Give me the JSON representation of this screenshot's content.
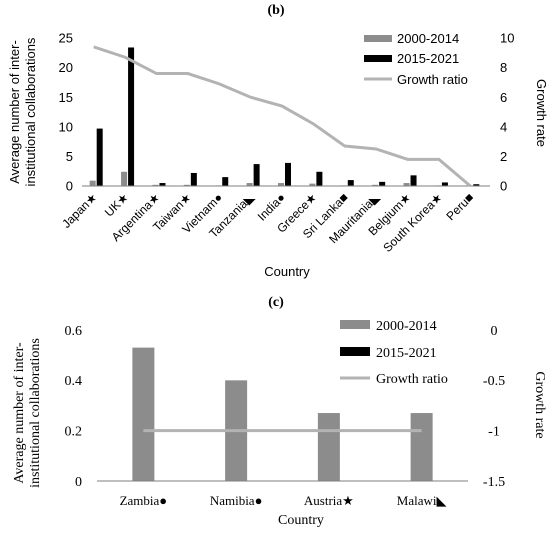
{
  "colors": {
    "bar_early": "#8c8c8c",
    "bar_late": "#000000",
    "line": "#b3b3b3",
    "axis": "#7f7f7f"
  },
  "chart_data": [
    {
      "panel_label": "(b)",
      "type": "bar",
      "secondary_type": "line",
      "categories": [
        "Japan★",
        "UK★",
        "Argentina★",
        "Taiwan★",
        "Vietnam●",
        "Tanzania◣",
        "India●",
        "Greece★",
        "Sri Lanka■",
        "Mauritania◣",
        "Belgium★",
        "South Korea★",
        "Peru■"
      ],
      "series": [
        {
          "name": "2000-2014",
          "axis": "left",
          "values": [
            0.9,
            2.4,
            0.2,
            0.2,
            0.1,
            0.5,
            0.5,
            0.4,
            0.1,
            0.2,
            0.5,
            0.1,
            0.1
          ]
        },
        {
          "name": "2015-2021",
          "axis": "left",
          "values": [
            9.7,
            23.4,
            0.5,
            2.2,
            1.5,
            3.7,
            3.9,
            2.4,
            1.0,
            0.7,
            1.8,
            0.6,
            0.3
          ]
        },
        {
          "name": "Growth ratio",
          "axis": "right",
          "values": [
            9.4,
            8.7,
            7.6,
            7.6,
            6.9,
            6.0,
            5.4,
            4.2,
            2.7,
            2.5,
            1.8,
            1.8,
            0.0
          ]
        }
      ],
      "xlabel": "Country",
      "ylabel": "Average number of inter-institutional collaborations",
      "ylabel_right": "Growth rate",
      "ylim": [
        0,
        25
      ],
      "yticks": [
        "0",
        "5",
        "10",
        "15",
        "20",
        "25"
      ],
      "ylim_right": [
        0,
        10
      ],
      "yticks_right": [
        "0",
        "2",
        "4",
        "6",
        "8",
        "10"
      ],
      "legend_position": "top-right",
      "grid": false
    },
    {
      "panel_label": "(c)",
      "type": "bar",
      "secondary_type": "line",
      "categories": [
        "Zambia●",
        "Namibia●",
        "Austria★",
        "Malawi◣"
      ],
      "series": [
        {
          "name": "2000-2014",
          "axis": "left",
          "values": [
            0.53,
            0.4,
            0.27,
            0.27
          ]
        },
        {
          "name": "2015-2021",
          "axis": "left",
          "values": [
            0,
            0,
            0,
            0
          ]
        },
        {
          "name": "Growth ratio",
          "axis": "right",
          "values": [
            -1,
            -1,
            -1,
            -1
          ]
        }
      ],
      "xlabel": "Country",
      "ylabel": "Average number of inter-institutional collaborations",
      "ylabel_right": "Growth rate",
      "ylim": [
        0,
        0.6
      ],
      "yticks": [
        "0",
        "0.2",
        "0.4",
        "0.6"
      ],
      "ylim_right": [
        -1.5,
        0
      ],
      "yticks_right": [
        "0",
        "-0.5",
        "-1",
        "-1.5"
      ],
      "legend_position": "top-right",
      "grid": false
    }
  ]
}
